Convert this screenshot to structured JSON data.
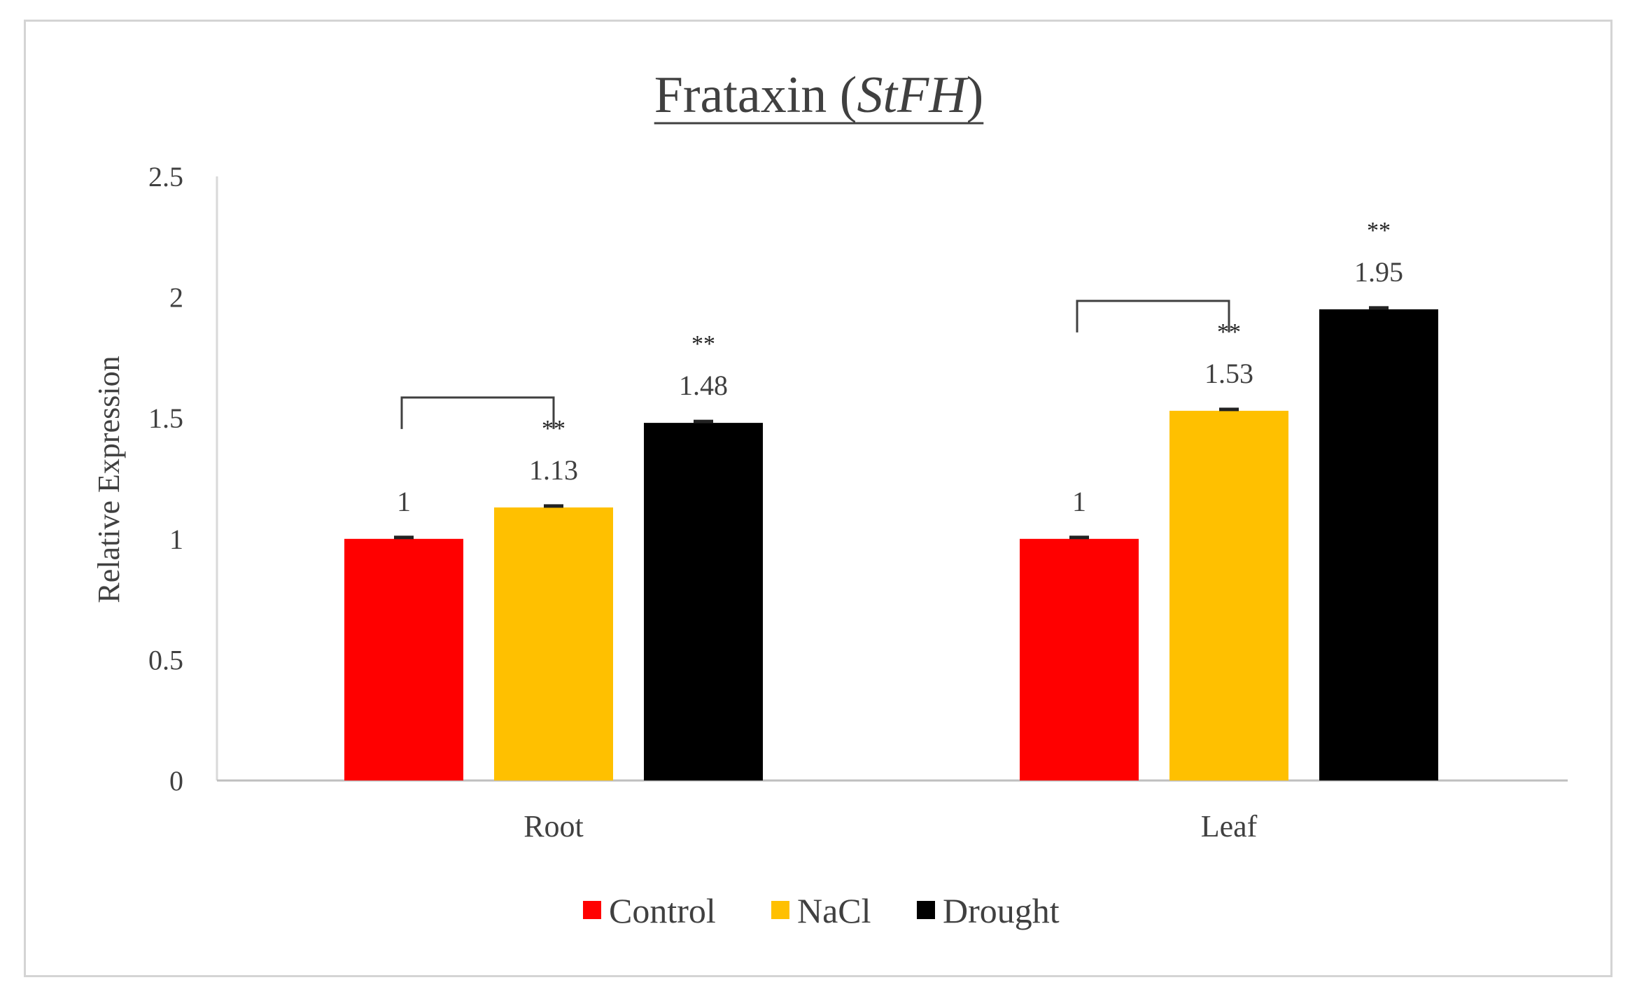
{
  "chart_data": {
    "type": "bar",
    "title_main": "Frataxin (",
    "title_gene": "StFH",
    "title_close": ")",
    "ylabel": "Relative Expression",
    "xlabel": "",
    "ylim": [
      0,
      2.5
    ],
    "yticks": [
      "0",
      "0.5",
      "1",
      "1.5",
      "2",
      "2.5"
    ],
    "categories": [
      "Root",
      "Leaf"
    ],
    "series": [
      {
        "name": "Control",
        "color": "#ff0000",
        "values": [
          1,
          1
        ],
        "labels": [
          "1",
          "1"
        ],
        "significance": [
          "",
          ""
        ]
      },
      {
        "name": "NaCl",
        "color": "#ffc000",
        "values": [
          1.13,
          1.53
        ],
        "labels": [
          "1.13",
          "1.53"
        ],
        "significance": [
          "**",
          "**"
        ]
      },
      {
        "name": "Drought",
        "color": "#000000",
        "values": [
          1.48,
          1.95
        ],
        "labels": [
          "1.48",
          "1.95"
        ],
        "significance": [
          "**",
          "**"
        ]
      }
    ],
    "comparison_brackets": [
      {
        "category": "Root",
        "from_series": "Control",
        "to_series": "NaCl"
      },
      {
        "category": "Leaf",
        "from_series": "Control",
        "to_series": "NaCl"
      }
    ],
    "legend_position": "bottom-center",
    "grid": false
  }
}
